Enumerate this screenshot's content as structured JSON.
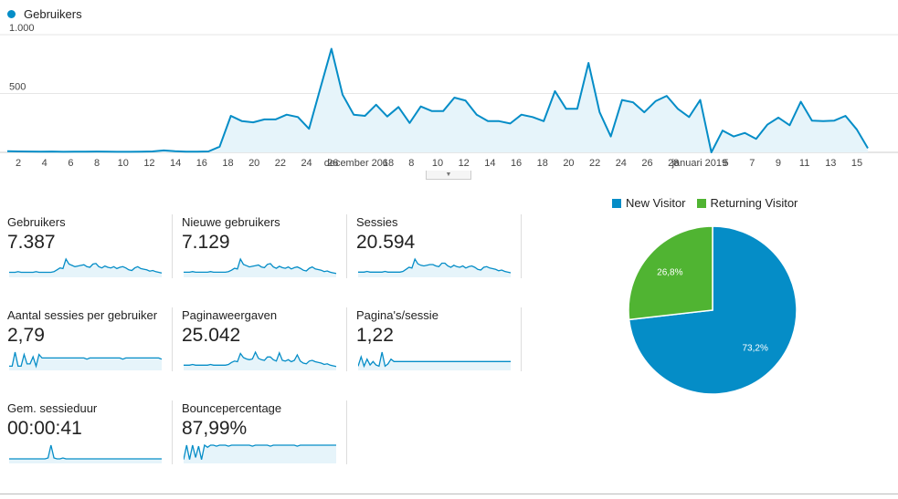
{
  "legend": {
    "series_label": "Gebruikers",
    "color": "#058dc7"
  },
  "colors": {
    "line": "#058dc7",
    "fill": "#e6f4fa",
    "grid": "#e6e6e6",
    "pie_new": "#058dc7",
    "pie_returning": "#50b432"
  },
  "chart_data": [
    {
      "type": "area",
      "series": [
        {
          "name": "Gebruikers",
          "values": [
            10,
            8,
            7,
            6,
            7,
            5,
            6,
            6,
            7,
            6,
            5,
            5,
            6,
            8,
            16,
            10,
            6,
            6,
            8,
            48,
            310,
            265,
            255,
            280,
            280,
            320,
            300,
            200,
            540,
            880,
            490,
            320,
            310,
            405,
            305,
            385,
            250,
            390,
            350,
            350,
            465,
            440,
            320,
            265,
            265,
            245,
            320,
            300,
            265,
            520,
            370,
            370,
            760,
            340,
            135,
            445,
            425,
            340,
            435,
            480,
            370,
            300,
            445,
            0,
            185,
            135,
            165,
            115,
            235,
            295,
            230,
            430,
            270,
            265,
            270,
            310,
            195,
            35
          ]
        }
      ],
      "x_tick_labels": [
        "2",
        "4",
        "6",
        "8",
        "10",
        "12",
        "14",
        "16",
        "18",
        "20",
        "22",
        "24",
        "26",
        "december 2018",
        "6",
        "8",
        "10",
        "12",
        "14",
        "16",
        "18",
        "20",
        "22",
        "24",
        "26",
        "28",
        "januari 2019",
        "5",
        "7",
        "9",
        "11",
        "13",
        "15"
      ],
      "y_tick_labels": [
        "1.000",
        "500"
      ],
      "ylim": [
        0,
        1000
      ]
    },
    {
      "type": "pie",
      "categories": [
        "New Visitor",
        "Returning Visitor"
      ],
      "values": [
        73.2,
        26.8
      ],
      "labels": [
        "73,2%",
        "26,8%"
      ],
      "legend_position": "top"
    }
  ],
  "metrics": [
    {
      "label": "Gebruikers",
      "value": "7.387",
      "spark": [
        5,
        5,
        5,
        6,
        5,
        5,
        5,
        5,
        5,
        6,
        5,
        5,
        5,
        5,
        5,
        6,
        9,
        12,
        11,
        26,
        18,
        16,
        14,
        15,
        16,
        17,
        14,
        13,
        18,
        19,
        14,
        12,
        15,
        13,
        12,
        14,
        11,
        13,
        14,
        12,
        9,
        8,
        12,
        14,
        11,
        10,
        9,
        7,
        8,
        6,
        5,
        4
      ]
    },
    {
      "label": "Nieuwe gebruikers",
      "value": "7.129",
      "spark": [
        5,
        5,
        5,
        6,
        5,
        5,
        5,
        5,
        5,
        6,
        5,
        5,
        5,
        5,
        5,
        6,
        8,
        11,
        10,
        25,
        17,
        15,
        13,
        14,
        15,
        16,
        13,
        12,
        17,
        18,
        13,
        11,
        14,
        12,
        11,
        13,
        10,
        12,
        13,
        11,
        8,
        7,
        11,
        13,
        10,
        9,
        8,
        6,
        7,
        5,
        4,
        3
      ]
    },
    {
      "label": "Sessies",
      "value": "20.594",
      "spark": [
        5,
        5,
        5,
        6,
        5,
        5,
        5,
        5,
        5,
        6,
        5,
        5,
        5,
        5,
        5,
        6,
        9,
        12,
        11,
        24,
        17,
        15,
        14,
        15,
        16,
        16,
        14,
        13,
        18,
        18,
        14,
        12,
        15,
        13,
        12,
        14,
        11,
        13,
        14,
        12,
        9,
        8,
        12,
        13,
        11,
        10,
        9,
        7,
        8,
        6,
        5,
        4
      ]
    },
    {
      "label": "Aantal sessies per gebruiker",
      "value": "2,79",
      "spark": [
        2,
        2,
        14,
        2,
        2,
        12,
        4,
        4,
        10,
        2,
        12,
        9,
        9,
        9,
        9,
        9,
        9,
        9,
        9,
        9,
        9,
        9,
        9,
        9,
        9,
        9,
        8,
        9,
        9,
        9,
        9,
        9,
        9,
        9,
        9,
        9,
        9,
        9,
        8,
        9,
        9,
        9,
        9,
        9,
        9,
        9,
        9,
        9,
        9,
        9,
        9,
        8
      ]
    },
    {
      "label": "Paginaweergaven",
      "value": "25.042",
      "spark": [
        5,
        5,
        5,
        6,
        5,
        5,
        5,
        5,
        5,
        6,
        5,
        5,
        5,
        5,
        5,
        6,
        9,
        11,
        10,
        22,
        16,
        14,
        13,
        14,
        24,
        15,
        13,
        12,
        17,
        17,
        13,
        11,
        23,
        12,
        11,
        13,
        10,
        12,
        20,
        11,
        8,
        7,
        11,
        12,
        10,
        9,
        8,
        6,
        7,
        5,
        4,
        3
      ]
    },
    {
      "label": "Pagina's/sessie",
      "value": "1,22",
      "spark": [
        2,
        10,
        2,
        8,
        3,
        6,
        3,
        2,
        14,
        2,
        4,
        8,
        6,
        6,
        6,
        6,
        6,
        6,
        6,
        6,
        6,
        6,
        6,
        6,
        6,
        6,
        6,
        6,
        6,
        6,
        6,
        6,
        6,
        6,
        6,
        6,
        6,
        6,
        6,
        6,
        6,
        6,
        6,
        6,
        6,
        6,
        6,
        6,
        6,
        6,
        6,
        6
      ]
    },
    {
      "label": "Gem. sessieduur",
      "value": "00:00:41",
      "spark": [
        3,
        3,
        3,
        3,
        3,
        3,
        3,
        3,
        3,
        3,
        3,
        3,
        3,
        4,
        18,
        4,
        3,
        3,
        4,
        3,
        3,
        3,
        3,
        3,
        3,
        3,
        3,
        3,
        3,
        3,
        3,
        3,
        3,
        3,
        3,
        3,
        3,
        3,
        3,
        3,
        3,
        3,
        3,
        3,
        3,
        3,
        3,
        3,
        3,
        3,
        3,
        3
      ]
    },
    {
      "label": "Bouncepercentage",
      "value": "87,99%",
      "spark": [
        2,
        16,
        2,
        16,
        4,
        15,
        2,
        16,
        14,
        16,
        16,
        15,
        16,
        16,
        16,
        15,
        16,
        16,
        16,
        16,
        16,
        16,
        16,
        15,
        16,
        16,
        16,
        16,
        16,
        15,
        16,
        16,
        16,
        16,
        16,
        16,
        16,
        16,
        15,
        16,
        16,
        16,
        16,
        16,
        16,
        16,
        16,
        16,
        16,
        16,
        16,
        16
      ]
    }
  ]
}
